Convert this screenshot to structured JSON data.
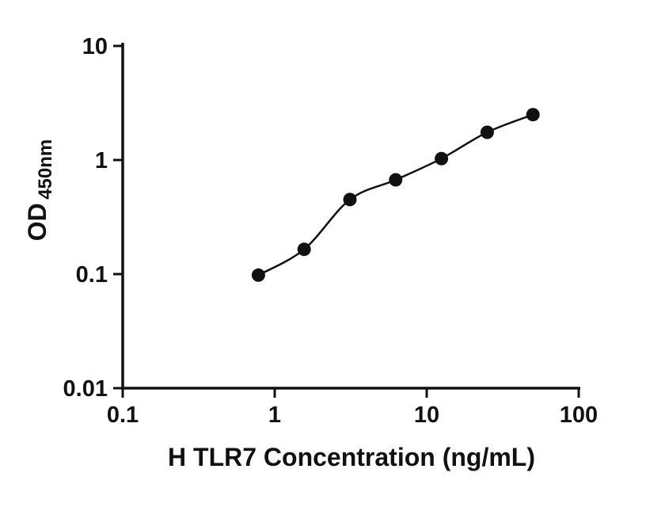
{
  "figure": {
    "background": "#ffffff",
    "axis_color": "#111111"
  },
  "chart_data": {
    "type": "scatter",
    "title": "",
    "xlabel": "H TLR7 Concentration (ng/mL)",
    "ylabel": "OD",
    "ylabel_sub": "450nm",
    "xscale": "log",
    "yscale": "log",
    "xlim": [
      0.1,
      100
    ],
    "ylim": [
      0.01,
      10
    ],
    "x": [
      0.781,
      1.563,
      3.125,
      6.25,
      12.5,
      25,
      50
    ],
    "y": [
      0.098,
      0.165,
      0.45,
      0.67,
      1.03,
      1.75,
      2.5
    ],
    "x_ticks": [
      {
        "value": 0.1,
        "label": "0.1"
      },
      {
        "value": 1,
        "label": "1"
      },
      {
        "value": 10,
        "label": "10"
      },
      {
        "value": 100,
        "label": "100"
      }
    ],
    "y_ticks": [
      {
        "value": 10,
        "label": "10"
      },
      {
        "value": 1,
        "label": "1"
      },
      {
        "value": 0.1,
        "label": "0.1"
      },
      {
        "value": 0.01,
        "label": "0.01"
      }
    ],
    "grid": false,
    "legend": "none",
    "curve": "smooth fit through points",
    "marker_color": "#111111",
    "line_color": "#111111"
  }
}
